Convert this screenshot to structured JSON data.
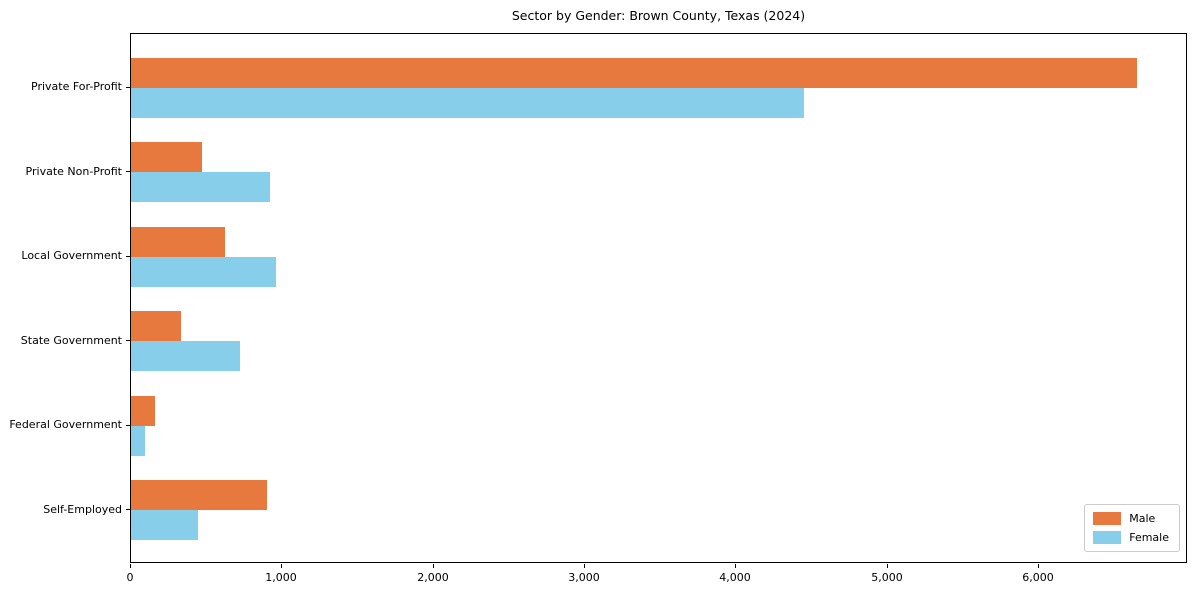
{
  "chart_data": {
    "type": "bar",
    "orientation": "horizontal",
    "title": "Sector by Gender: Brown County, Texas (2024)",
    "categories": [
      "Private For-Profit",
      "Private Non-Profit",
      "Local Government",
      "State Government",
      "Federal Government",
      "Self-Employed"
    ],
    "series": [
      {
        "name": "Male",
        "color": "#e8793e",
        "values": [
          6650,
          470,
          620,
          330,
          160,
          900
        ]
      },
      {
        "name": "Female",
        "color": "#87ceeb",
        "values": [
          4450,
          920,
          960,
          720,
          90,
          440
        ]
      }
    ],
    "xlabel": "",
    "ylabel": "",
    "xlim": [
      0,
      6985
    ],
    "xticks": [
      0,
      1000,
      2000,
      3000,
      4000,
      5000,
      6000
    ],
    "xtick_labels": [
      "0",
      "1,000",
      "2,000",
      "3,000",
      "4,000",
      "5,000",
      "6,000"
    ],
    "grid": false,
    "legend_position": "lower right",
    "plot_border_color": "#000000",
    "background_color": "#ffffff"
  }
}
